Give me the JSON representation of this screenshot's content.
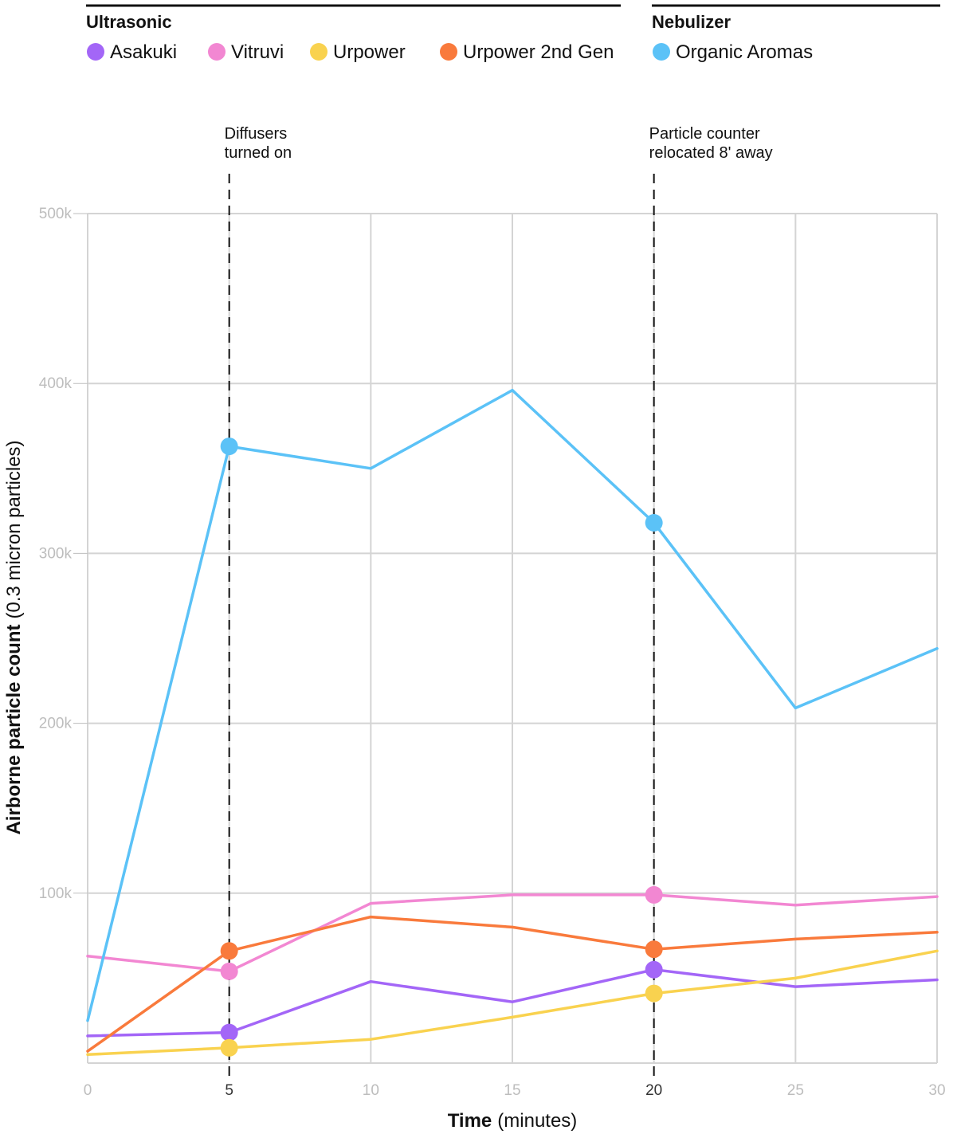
{
  "chart_data": {
    "type": "line",
    "xlabel_bold": "Time",
    "xlabel_rest": "(minutes)",
    "ylabel_bold": "Airborne particle count",
    "ylabel_rest": "(0.3 micron particles)",
    "xlim": [
      0,
      30
    ],
    "ylim": [
      0,
      500000
    ],
    "x_ticks": [
      0,
      5,
      10,
      15,
      20,
      25,
      30
    ],
    "x_tick_labels": [
      "0",
      "5",
      "10",
      "15",
      "20",
      "25",
      "30"
    ],
    "highlight_x_ticks": [
      5,
      20
    ],
    "y_ticks": [
      100000,
      200000,
      300000,
      400000,
      500000
    ],
    "y_tick_labels": [
      "100k",
      "200k",
      "300k",
      "400k",
      "500k"
    ],
    "grid": true,
    "legend_groups": [
      {
        "title": "Ultrasonic",
        "entries": [
          "Asakuki",
          "Vitruvi",
          "Urpower",
          "Urpower 2nd Gen"
        ]
      },
      {
        "title": "Nebulizer",
        "entries": [
          "Organic Aromas"
        ]
      }
    ],
    "annotations": [
      {
        "x": 5,
        "lines": [
          "Diffusers",
          "turned on"
        ]
      },
      {
        "x": 20,
        "lines": [
          "Particle counter",
          "relocated 8' away"
        ]
      }
    ],
    "marker_x": [
      5,
      20
    ],
    "series": [
      {
        "name": "Asakuki",
        "color": "#a366f7",
        "x": [
          0,
          5,
          10,
          15,
          20,
          25,
          30
        ],
        "values": [
          16000,
          18000,
          48000,
          36000,
          55000,
          45000,
          49000
        ]
      },
      {
        "name": "Vitruvi",
        "color": "#f287d2",
        "x": [
          0,
          5,
          10,
          15,
          20,
          25,
          30
        ],
        "values": [
          63000,
          54000,
          94000,
          99000,
          99000,
          93000,
          98000
        ]
      },
      {
        "name": "Urpower",
        "color": "#f9d24f",
        "x": [
          0,
          5,
          10,
          15,
          20,
          25,
          30
        ],
        "values": [
          5000,
          9000,
          14000,
          27000,
          41000,
          50000,
          66000
        ]
      },
      {
        "name": "Urpower 2nd Gen",
        "color": "#f97a3c",
        "x": [
          0,
          5,
          10,
          15,
          20,
          25,
          30
        ],
        "values": [
          7000,
          66000,
          86000,
          80000,
          67000,
          73000,
          77000
        ]
      },
      {
        "name": "Organic Aromas",
        "color": "#5bc2f7",
        "x": [
          0,
          5,
          10,
          15,
          20,
          25,
          30
        ],
        "values": [
          25000,
          363000,
          350000,
          396000,
          318000,
          209000,
          244000
        ]
      }
    ]
  }
}
